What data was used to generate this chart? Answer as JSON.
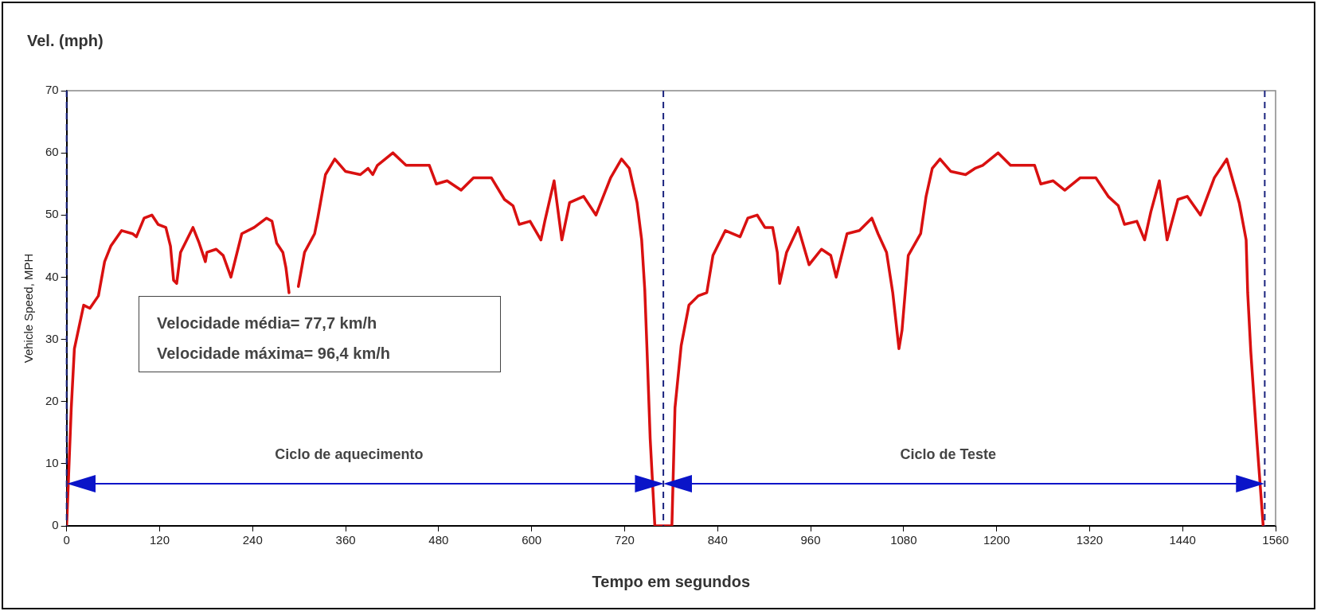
{
  "chart_data": {
    "type": "line",
    "title": "Vel. (mph)",
    "xlabel": "Tempo em segundos",
    "ylabel": "Vehicle Speed, MPH",
    "x": [
      0,
      6,
      10,
      16,
      22,
      30,
      41,
      49,
      57,
      71,
      85,
      90,
      100,
      110,
      118,
      128,
      134,
      138,
      142,
      147,
      163,
      171,
      179,
      181,
      193,
      202,
      212,
      226,
      242,
      258,
      265,
      271,
      279,
      283,
      287,
      292,
      299,
      307,
      320,
      324,
      334,
      346,
      360,
      379,
      389,
      395,
      401,
      421,
      438,
      468,
      477,
      491,
      509,
      525,
      548,
      565,
      576,
      584,
      598,
      612,
      617,
      629,
      639,
      649,
      667,
      683,
      702,
      716,
      726,
      736,
      742,
      746,
      749,
      753,
      759,
      781,
      785,
      793,
      803,
      815,
      826,
      834,
      850,
      869,
      879,
      891,
      901,
      911,
      917,
      920,
      929,
      944,
      958,
      974,
      986,
      993,
      1007,
      1023,
      1039,
      1047,
      1058,
      1066,
      1074,
      1078,
      1086,
      1102,
      1109,
      1117,
      1127,
      1141,
      1160,
      1172,
      1182,
      1202,
      1218,
      1249,
      1257,
      1273,
      1288,
      1308,
      1328,
      1344,
      1357,
      1365,
      1381,
      1391,
      1399,
      1410,
      1420,
      1434,
      1446,
      1463,
      1481,
      1497,
      1513,
      1522,
      1524,
      1528,
      1536,
      1544
    ],
    "series": [
      {
        "color": "#d91010",
        "values": [
          0,
          19,
          28.5,
          32,
          35.5,
          35,
          37,
          42.5,
          45,
          47.5,
          47,
          46.5,
          49.5,
          50,
          48.5,
          48,
          45,
          39.5,
          39,
          44,
          48,
          45.5,
          42.5,
          44,
          44.5,
          43.5,
          40,
          47,
          48,
          49.5,
          49,
          45.5,
          44,
          41.5,
          37.5,
          null,
          38.5,
          44,
          47,
          49.5,
          56.5,
          59,
          57,
          56.5,
          57.5,
          56.5,
          58,
          60,
          58,
          58,
          55,
          55.5,
          54,
          56,
          56,
          52.5,
          51.5,
          48.5,
          49,
          46,
          49,
          55.5,
          46,
          52,
          53,
          50,
          56,
          59,
          57.5,
          52,
          46,
          38,
          28,
          14,
          0,
          0,
          19,
          29,
          35.5,
          37,
          37.5,
          43.5,
          47.5,
          46.5,
          49.5,
          50,
          48,
          48,
          44,
          39,
          44,
          48,
          42,
          44.5,
          43.5,
          40,
          47,
          47.5,
          49.5,
          47,
          44,
          37.5,
          28.5,
          31.5,
          43.5,
          47,
          53,
          57.5,
          59,
          57,
          56.5,
          57.5,
          58,
          60,
          58,
          58,
          55,
          55.5,
          54,
          56,
          56,
          53,
          51.5,
          48.5,
          49,
          46,
          50.5,
          55.5,
          46,
          52.5,
          53,
          50,
          56,
          59,
          52,
          46,
          37.5,
          28,
          13.5,
          0
        ]
      }
    ],
    "xlim": [
      0,
      1560
    ],
    "ylim": [
      0,
      70
    ],
    "xticks": [
      0,
      120,
      240,
      360,
      480,
      600,
      720,
      840,
      960,
      1080,
      1200,
      1320,
      1440,
      1560
    ],
    "yticks": [
      0,
      10,
      20,
      30,
      40,
      50,
      60,
      70
    ],
    "grid": false,
    "legend": false,
    "marker": "none",
    "line_style": "solid",
    "ref_lines": [
      {
        "axis": "x",
        "value": 0,
        "color": "#1a237e",
        "line_style": "dashed"
      },
      {
        "axis": "x",
        "value": 770,
        "color": "#1a237e",
        "line_style": "dashed"
      },
      {
        "axis": "x",
        "value": 1546,
        "color": "#1a237e",
        "line_style": "dashed"
      }
    ],
    "annotations": [
      "Velocidade média= 77,7 km/h",
      "Velocidade máxima= 96,4 km/h",
      "Ciclo de aquecimento",
      "Ciclo de Teste"
    ]
  }
}
